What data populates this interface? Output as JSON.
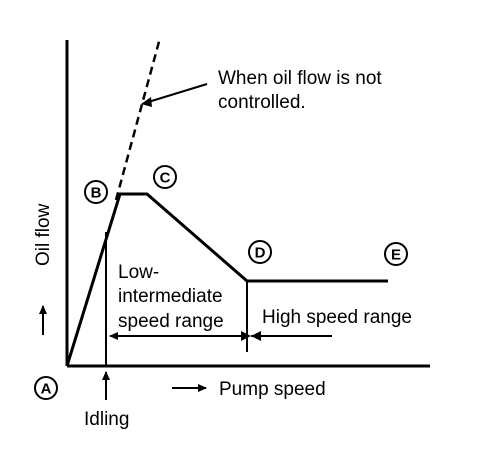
{
  "diagram": {
    "y_axis_label": "Oil flow",
    "x_axis_label": "Pump speed",
    "annotation": {
      "line1": "When oil flow is not",
      "line2": "controlled."
    },
    "points": {
      "a": "A",
      "b": "B",
      "c": "C",
      "d": "D",
      "e": "E"
    },
    "idling_label": "Idling",
    "low_range": {
      "line1": "Low-",
      "line2": "intermediate",
      "line3": "speed range"
    },
    "high_range": "High speed range"
  }
}
